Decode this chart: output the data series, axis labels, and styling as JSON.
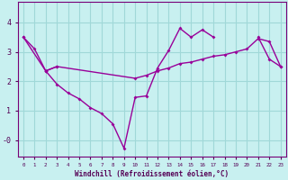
{
  "xlabel": "Windchill (Refroidissement éolien,°C)",
  "background_color": "#c8f0f0",
  "grid_color": "#a0d8d8",
  "line_color": "#990099",
  "line1_x": [
    0,
    1,
    2,
    3
  ],
  "line1_y": [
    3.5,
    3.1,
    2.35,
    2.5
  ],
  "line2_x": [
    0,
    2,
    3,
    4,
    5,
    6,
    7,
    8,
    9,
    10,
    11,
    12,
    13,
    14,
    15,
    16,
    17,
    21,
    22,
    23
  ],
  "line2_y": [
    3.5,
    2.35,
    1.9,
    1.6,
    1.4,
    1.1,
    0.9,
    0.55,
    -0.28,
    1.45,
    1.5,
    2.45,
    3.05,
    3.8,
    3.5,
    3.75,
    3.5,
    3.5,
    2.75,
    2.5
  ],
  "line3_x": [
    2,
    3,
    10,
    11,
    12,
    13,
    14,
    15,
    16,
    17,
    18,
    19,
    20,
    21,
    22,
    23
  ],
  "line3_y": [
    2.35,
    2.5,
    2.1,
    2.2,
    2.35,
    2.45,
    2.6,
    2.65,
    2.75,
    2.85,
    2.9,
    3.0,
    3.1,
    3.45,
    3.35,
    2.5
  ],
  "ylim": [
    -0.55,
    4.7
  ],
  "xlim": [
    -0.5,
    23.5
  ],
  "ytick_vals": [
    0,
    1,
    2,
    3,
    4
  ],
  "ytick_labels": [
    "-0",
    "1",
    "2",
    "3",
    "4"
  ]
}
